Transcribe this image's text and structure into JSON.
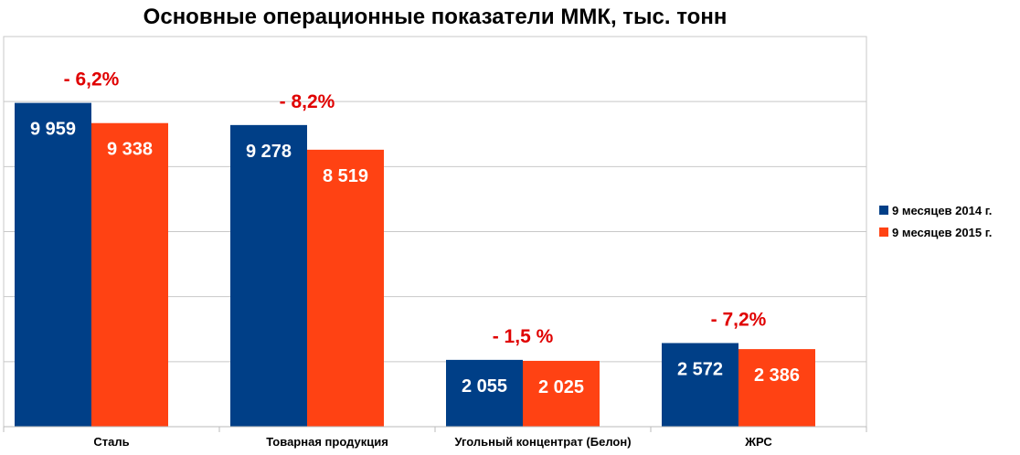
{
  "chart_data": {
    "type": "bar",
    "title": "Основные операционные показатели ММК, тыс. тонн",
    "categories": [
      "Сталь",
      "Товарная продукция",
      "Угольный концентрат (Белон)",
      "ЖРС"
    ],
    "series": [
      {
        "name": "9 месяцев 2014 г.",
        "color": "#003f87",
        "values": [
          9959,
          9278,
          2055,
          2572
        ],
        "labels": [
          "9 959",
          "9 278",
          "2 055",
          "2 572"
        ]
      },
      {
        "name": "9 месяцев 2015 г.",
        "color": "#ff4213",
        "values": [
          9338,
          8519,
          2025,
          2386
        ],
        "labels": [
          "9 338",
          "8 519",
          "2 025",
          "2 386"
        ]
      }
    ],
    "changes": [
      "- 6,2%",
      "- 8,2%",
      "- 1,5 %",
      "- 7,2%"
    ],
    "ylim": [
      0,
      12000
    ],
    "grid": true,
    "legend_position": "right"
  }
}
